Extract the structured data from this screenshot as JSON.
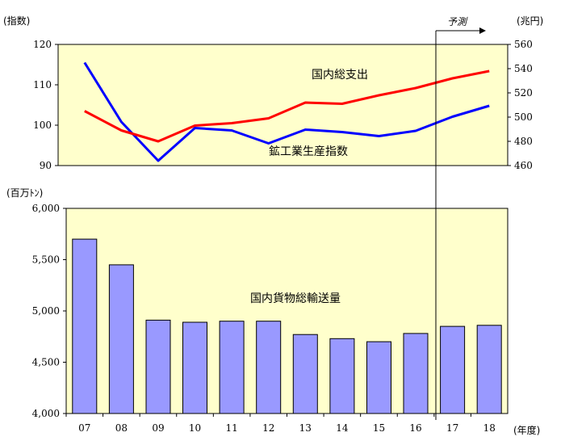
{
  "chart_data": [
    {
      "type": "line",
      "y_left_unit": "(指数)",
      "y_right_unit": "(兆円)",
      "categories": [
        "07",
        "08",
        "09",
        "10",
        "11",
        "12",
        "13",
        "14",
        "15",
        "16",
        "17",
        "18"
      ],
      "y_left_range": [
        90,
        120
      ],
      "y_left_ticks": [
        90,
        100,
        110,
        120
      ],
      "y_right_range": [
        460,
        560
      ],
      "y_right_ticks": [
        460,
        480,
        500,
        520,
        540,
        560
      ],
      "series": [
        {
          "name": "鉱工業生産指数",
          "axis": "left",
          "color": "#0000ff",
          "values": [
            115.5,
            100.8,
            91.2,
            99.3,
            98.7,
            95.5,
            98.9,
            98.3,
            97.3,
            98.6,
            102.1,
            104.8
          ]
        },
        {
          "name": "国内総支出",
          "axis": "right",
          "color": "#ff0000",
          "values": [
            505,
            489,
            480,
            493,
            495,
            499,
            512,
            511,
            518,
            524,
            532,
            538
          ]
        }
      ]
    },
    {
      "type": "bar",
      "y_unit": "(百万ﾄﾝ)",
      "x_unit": "(年度)",
      "categories": [
        "07",
        "08",
        "09",
        "10",
        "11",
        "12",
        "13",
        "14",
        "15",
        "16",
        "17",
        "18"
      ],
      "ylim": [
        4000,
        6000
      ],
      "yticks": [
        4000,
        4500,
        5000,
        5500,
        6000
      ],
      "ytick_labels": [
        "4,000",
        "4,500",
        "5,000",
        "5,500",
        "6,000"
      ],
      "series": [
        {
          "name": "国内貨物総輸送量",
          "color": "#9999ff",
          "values": [
            5700,
            5450,
            4910,
            4890,
            4900,
            4900,
            4770,
            4730,
            4700,
            4780,
            4850,
            4860
          ]
        }
      ]
    }
  ],
  "forecast": {
    "label": "予測",
    "from_category": "17"
  },
  "colors": {
    "panel_fill": "#ffffcc",
    "bar_fill": "#9999ff"
  }
}
